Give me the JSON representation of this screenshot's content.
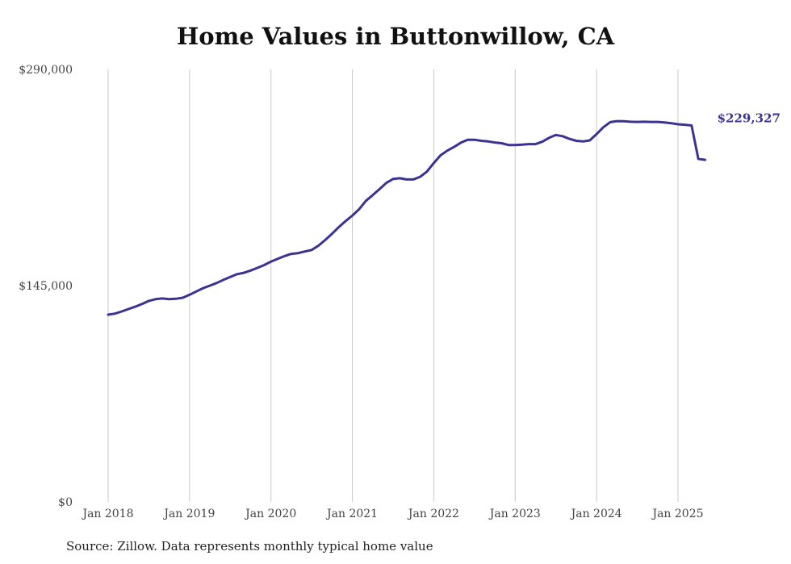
{
  "title": "Home Values in Buttonwillow, CA",
  "source": "Source: Zillow. Data represents monthly typical home value",
  "chart_data": {
    "type": "line",
    "title": "Home Values in Buttonwillow, CA",
    "xlabel": "",
    "ylabel": "",
    "x_tick_labels": [
      "Jan 2018",
      "Jan 2019",
      "Jan 2020",
      "Jan 2021",
      "Jan 2022",
      "Jan 2023",
      "Jan 2024",
      "Jan 2025"
    ],
    "y_tick_labels": [
      "$290,000",
      "$145,000",
      "$0"
    ],
    "y_ticks": [
      290000,
      145000,
      0
    ],
    "ylim": [
      0,
      290000
    ],
    "xlim": [
      "2018-01",
      "2025-05"
    ],
    "grid": "vertical",
    "line_color": "#3a3393",
    "end_label": "$229,327",
    "series": [
      {
        "x": [
          "2018-01",
          "2018-02",
          "2018-03",
          "2018-04",
          "2018-05",
          "2018-06",
          "2018-07",
          "2018-08",
          "2018-09",
          "2018-10",
          "2018-11",
          "2018-12",
          "2019-01",
          "2019-02",
          "2019-03",
          "2019-04",
          "2019-05",
          "2019-06",
          "2019-07",
          "2019-08",
          "2019-09",
          "2019-10",
          "2019-11",
          "2019-12",
          "2020-01",
          "2020-02",
          "2020-03",
          "2020-04",
          "2020-05",
          "2020-06",
          "2020-07",
          "2020-08",
          "2020-09",
          "2020-10",
          "2020-11",
          "2020-12",
          "2021-01",
          "2021-02",
          "2021-03",
          "2021-04",
          "2021-05",
          "2021-06",
          "2021-07",
          "2021-08",
          "2021-09",
          "2021-10",
          "2021-11",
          "2021-12",
          "2022-01",
          "2022-02",
          "2022-03",
          "2022-04",
          "2022-05",
          "2022-06",
          "2022-07",
          "2022-08",
          "2022-09",
          "2022-10",
          "2022-11",
          "2022-12",
          "2023-01",
          "2023-02",
          "2023-03",
          "2023-04",
          "2023-05",
          "2023-06",
          "2023-07",
          "2023-08",
          "2023-09",
          "2023-10",
          "2023-11",
          "2023-12",
          "2024-01",
          "2024-02",
          "2024-03",
          "2024-04",
          "2024-05",
          "2024-06",
          "2024-07",
          "2024-08",
          "2024-09",
          "2024-10",
          "2024-11",
          "2024-12",
          "2025-01",
          "2025-02",
          "2025-03",
          "2025-04",
          "2025-05"
        ],
        "values": [
          125500,
          126200,
          127700,
          129300,
          130900,
          132700,
          134800,
          135900,
          136400,
          135900,
          136200,
          136900,
          138900,
          141100,
          143300,
          145000,
          146800,
          148900,
          150800,
          152700,
          153600,
          155100,
          156900,
          158800,
          161100,
          163000,
          164800,
          166300,
          166800,
          167900,
          168900,
          171800,
          175600,
          179800,
          184300,
          188300,
          192000,
          196300,
          201900,
          205700,
          209700,
          213900,
          216500,
          217000,
          216200,
          216200,
          218000,
          221500,
          227200,
          232400,
          235500,
          238000,
          240900,
          242800,
          242800,
          242100,
          241700,
          241000,
          240500,
          239300,
          239300,
          239500,
          239900,
          239900,
          241500,
          244100,
          246000,
          245200,
          243400,
          242100,
          241700,
          242400,
          246600,
          251200,
          254600,
          255300,
          255200,
          254900,
          254800,
          254900,
          254800,
          254800,
          254400,
          253900,
          253200,
          252900,
          252400,
          230000,
          229327
        ]
      }
    ]
  }
}
